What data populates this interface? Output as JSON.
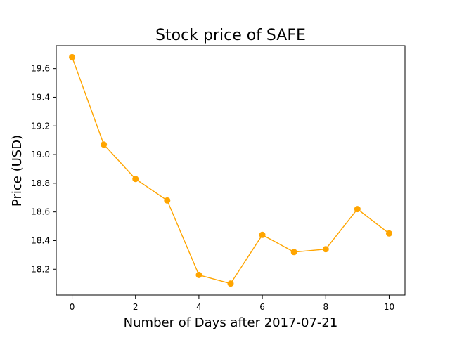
{
  "chart_data": {
    "type": "line",
    "title": "Stock price of SAFE",
    "xlabel": "Number of Days after 2017-07-21",
    "ylabel": "Price (USD)",
    "x": [
      0,
      1,
      2,
      3,
      4,
      5,
      6,
      7,
      8,
      9,
      10
    ],
    "series": [
      {
        "values": [
          19.68,
          19.07,
          18.83,
          18.68,
          18.16,
          18.1,
          18.44,
          18.32,
          18.34,
          18.62,
          18.45
        ],
        "color": "#ffa500"
      }
    ],
    "xticks": [
      0,
      2,
      4,
      6,
      8,
      10
    ],
    "yticks": [
      18.2,
      18.4,
      18.6,
      18.8,
      19.0,
      19.2,
      19.4,
      19.6
    ],
    "xtick_labels": [
      "0",
      "2",
      "4",
      "6",
      "8",
      "10"
    ],
    "ytick_labels": [
      "18.2",
      "18.4",
      "18.6",
      "18.8",
      "19.0",
      "19.2",
      "19.4",
      "19.6"
    ],
    "xlim": [
      -0.5,
      10.5
    ],
    "ylim": [
      18.02,
      19.76
    ],
    "grid": false,
    "marker": "circle"
  }
}
